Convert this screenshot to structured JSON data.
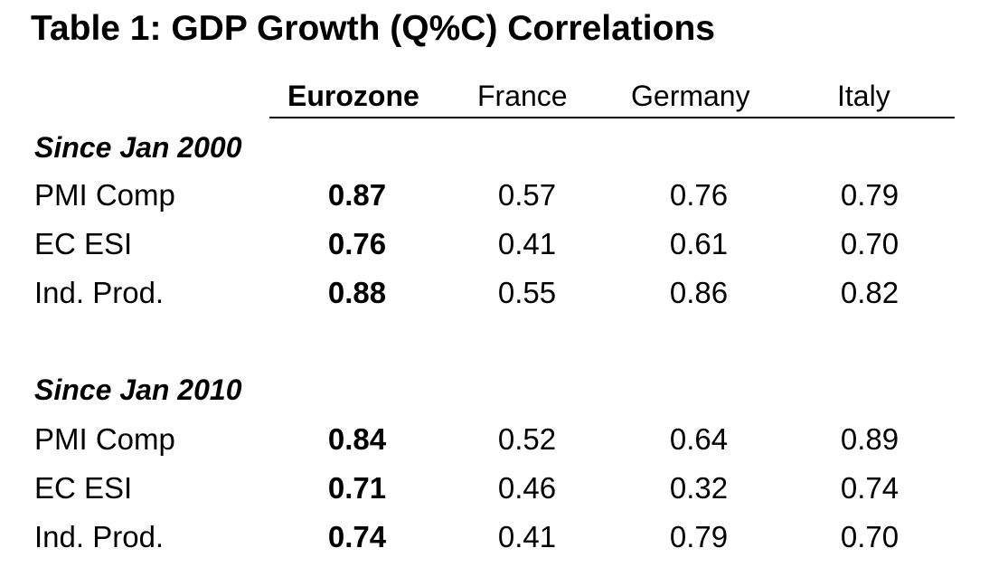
{
  "title": "Table 1: GDP Growth (Q%C) Correlations",
  "columns": [
    "Eurozone",
    "France",
    "Germany",
    "Italy"
  ],
  "sections": [
    {
      "label": "Since Jan 2000",
      "rows": [
        {
          "label": "PMI Comp",
          "values": [
            "0.87",
            "0.57",
            "0.76",
            "0.79"
          ]
        },
        {
          "label": "EC ESI",
          "values": [
            "0.76",
            "0.41",
            "0.61",
            "0.70"
          ]
        },
        {
          "label": "Ind. Prod.",
          "values": [
            "0.88",
            "0.55",
            "0.86",
            "0.82"
          ]
        }
      ]
    },
    {
      "label": "Since Jan 2010",
      "rows": [
        {
          "label": "PMI Comp",
          "values": [
            "0.84",
            "0.52",
            "0.64",
            "0.89"
          ]
        },
        {
          "label": "EC ESI",
          "values": [
            "0.71",
            "0.46",
            "0.32",
            "0.74"
          ]
        },
        {
          "label": "Ind. Prod.",
          "values": [
            "0.74",
            "0.41",
            "0.79",
            "0.70"
          ]
        }
      ]
    }
  ]
}
